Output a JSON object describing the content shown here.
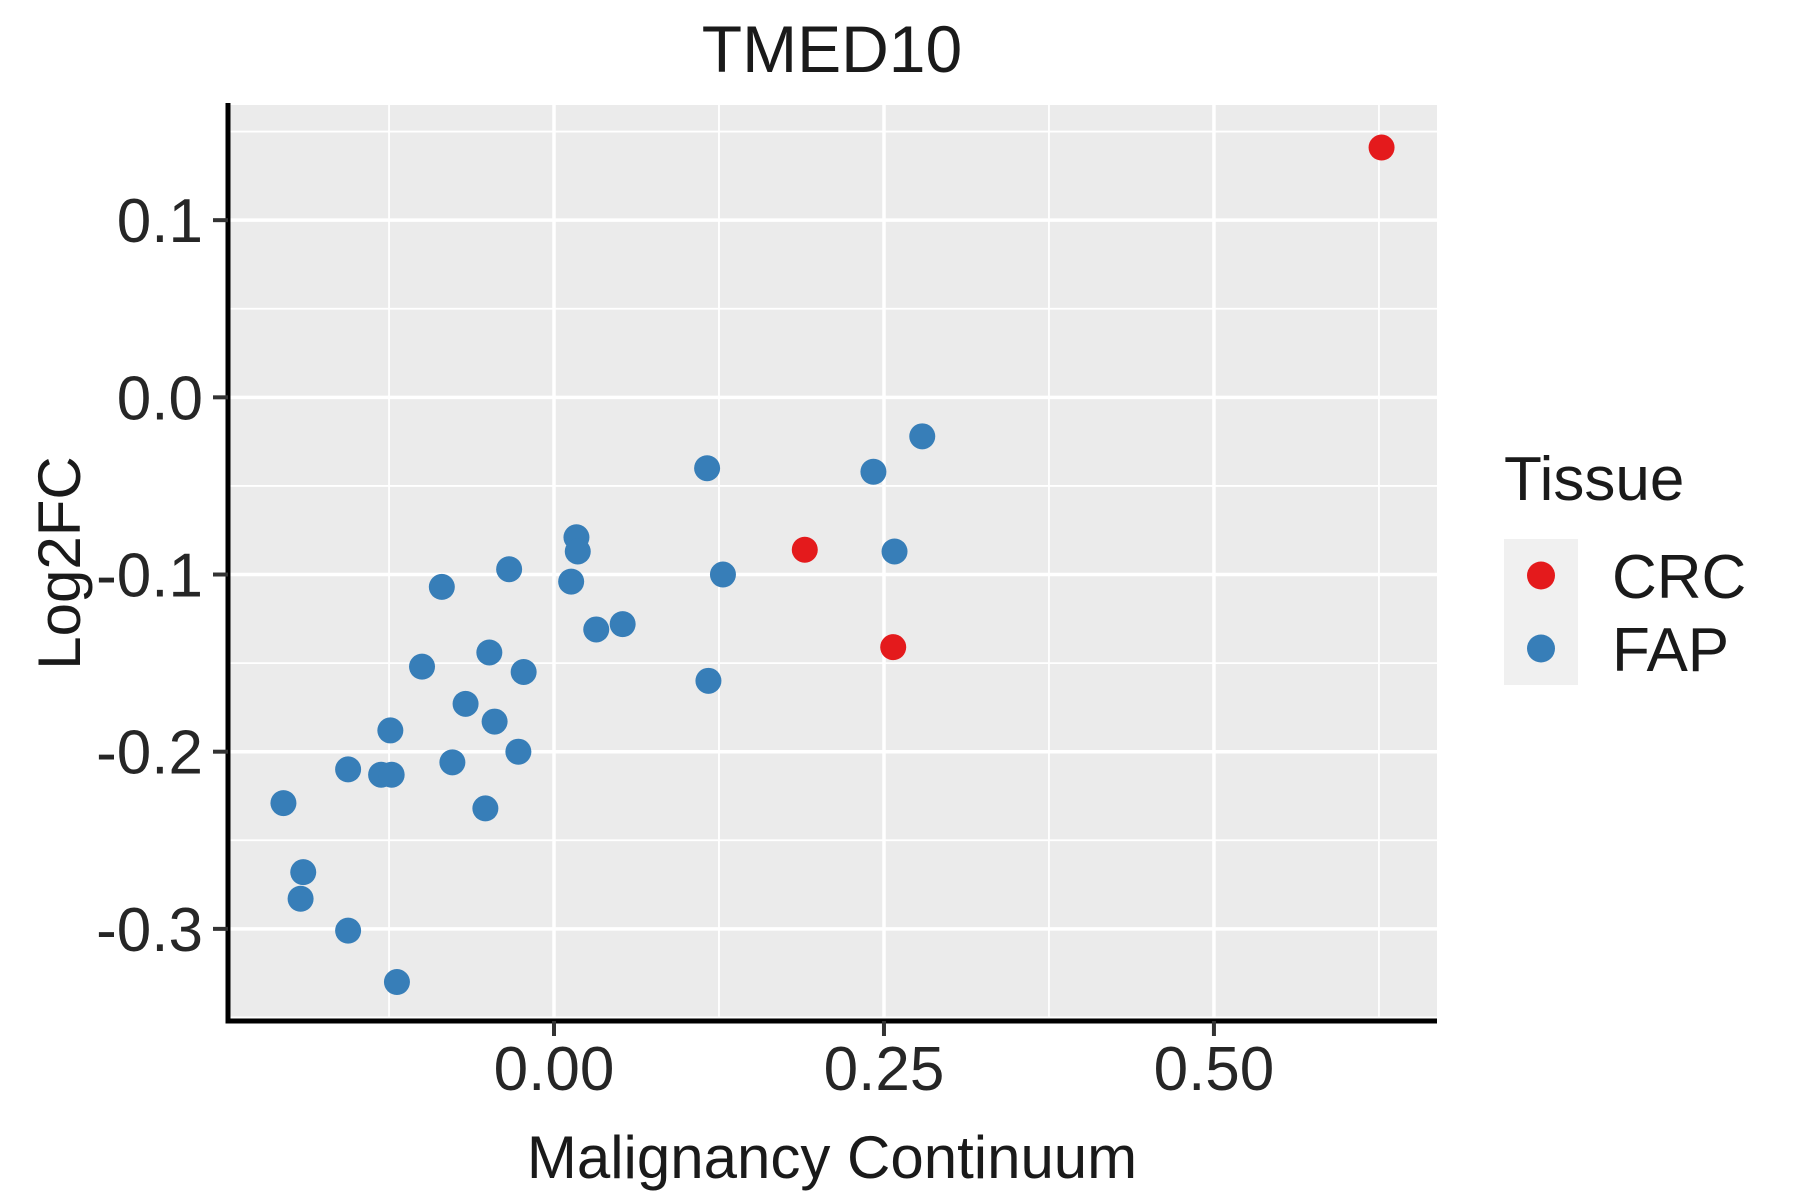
{
  "title": "TMED10",
  "axes": {
    "x": {
      "label": "Malignancy Continuum",
      "tick_labels": [
        "0.00",
        "0.25",
        "0.50"
      ],
      "tick_values": [
        0.0,
        0.25,
        0.5
      ],
      "minor_values": [
        -0.125,
        0.125,
        0.375,
        0.625
      ],
      "range": [
        -0.247,
        0.669
      ]
    },
    "y": {
      "label": "Log2FC",
      "tick_labels": [
        "0.1",
        "0.0",
        "-0.1",
        "-0.2",
        "-0.3"
      ],
      "tick_values": [
        0.1,
        0.0,
        -0.1,
        -0.2,
        -0.3
      ],
      "minor_values": [
        0.15,
        0.05,
        -0.05,
        -0.15,
        -0.25,
        -0.35
      ],
      "range": [
        -0.352,
        0.165
      ]
    }
  },
  "legend": {
    "title": "Tissue",
    "entries": [
      {
        "label": "CRC",
        "color": "#E41A1C"
      },
      {
        "label": "FAP",
        "color": "#377EB8"
      }
    ]
  },
  "style_colors": {
    "panel_bg": "#EBEBEB",
    "gridline": "#FFFFFF",
    "axis_line": "#000000",
    "tick_mark": "#333333",
    "legend_key_bg": "#F0F0F0",
    "crc_red": "#E41A1C",
    "fap_blue": "#377EB8"
  },
  "chart_data": {
    "type": "scatter",
    "title": "TMED10",
    "xlabel": "Malignancy Continuum",
    "ylabel": "Log2FC",
    "xlim": [
      -0.247,
      0.669
    ],
    "ylim": [
      -0.352,
      0.165
    ],
    "grid": "on",
    "legend_position": "right",
    "point_radius_px": 13,
    "series": [
      {
        "name": "CRC",
        "color": "#E41A1C",
        "points": [
          [
            0.19,
            -0.086
          ],
          [
            0.257,
            -0.141
          ],
          [
            0.627,
            0.141
          ]
        ]
      },
      {
        "name": "FAP",
        "color": "#377EB8",
        "points": [
          [
            0.279,
            -0.022
          ],
          [
            0.242,
            -0.042
          ],
          [
            0.258,
            -0.087
          ],
          [
            0.116,
            -0.04
          ],
          [
            0.128,
            -0.1
          ],
          [
            0.117,
            -0.16
          ],
          [
            0.017,
            -0.079
          ],
          [
            0.018,
            -0.087
          ],
          [
            0.013,
            -0.104
          ],
          [
            -0.034,
            -0.097
          ],
          [
            -0.085,
            -0.107
          ],
          [
            0.032,
            -0.131
          ],
          [
            0.052,
            -0.128
          ],
          [
            -0.049,
            -0.144
          ],
          [
            -0.1,
            -0.152
          ],
          [
            -0.023,
            -0.155
          ],
          [
            -0.067,
            -0.173
          ],
          [
            -0.045,
            -0.183
          ],
          [
            -0.124,
            -0.188
          ],
          [
            -0.077,
            -0.206
          ],
          [
            -0.027,
            -0.2
          ],
          [
            -0.156,
            -0.21
          ],
          [
            -0.131,
            -0.213
          ],
          [
            -0.123,
            -0.213
          ],
          [
            -0.205,
            -0.229
          ],
          [
            -0.052,
            -0.232
          ],
          [
            -0.19,
            -0.268
          ],
          [
            -0.192,
            -0.283
          ],
          [
            -0.156,
            -0.301
          ],
          [
            -0.119,
            -0.33
          ]
        ]
      }
    ]
  }
}
